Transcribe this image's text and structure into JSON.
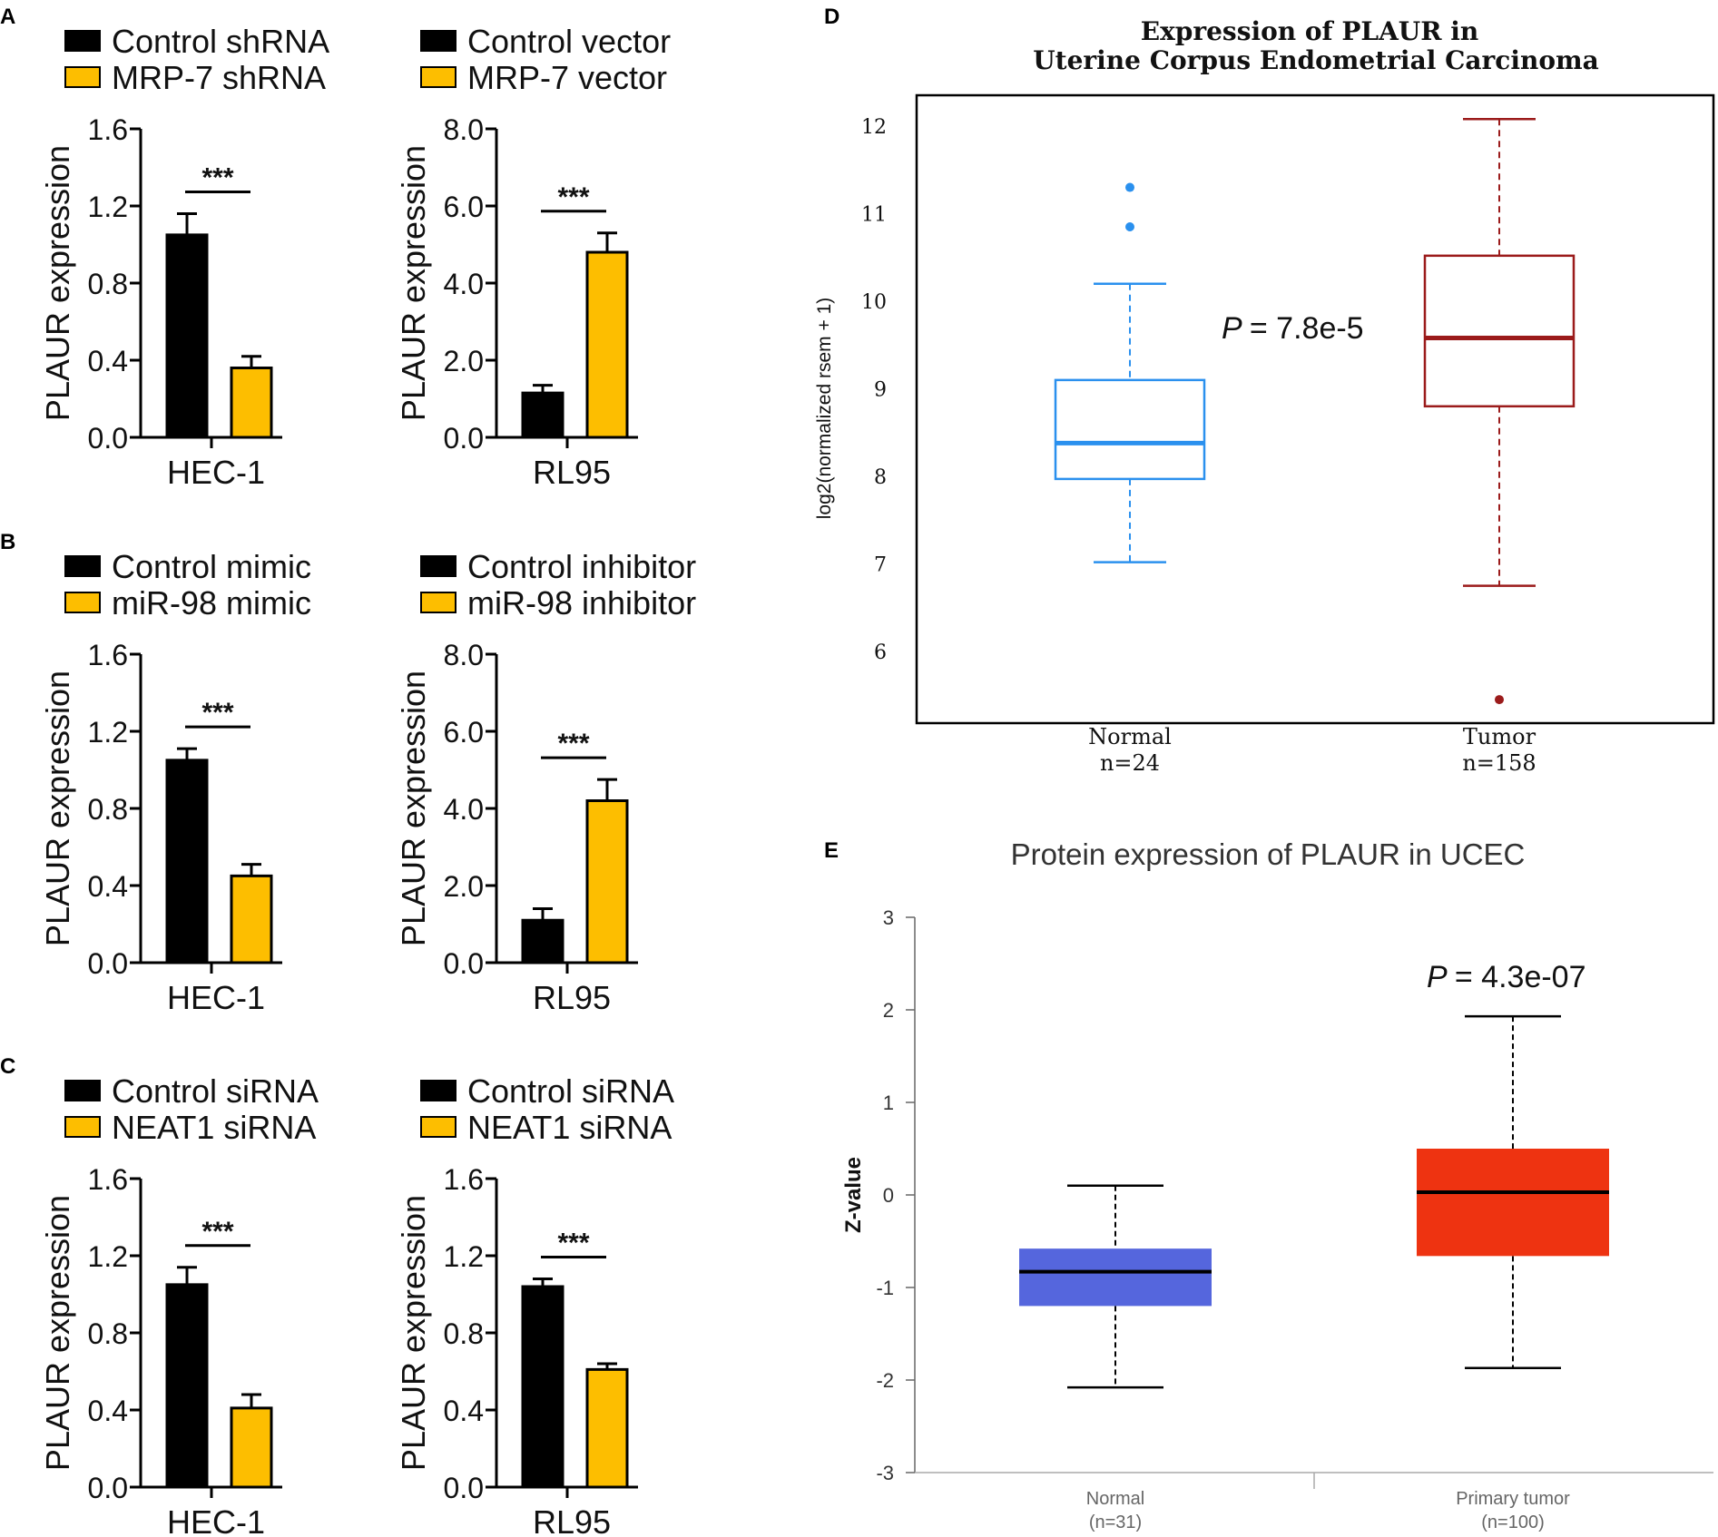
{
  "colors": {
    "control": "#000000",
    "treated": "#fdbe00",
    "d_normal": "#2a90ee",
    "d_tumor": "#9b1b1b",
    "e_normal": "#5566dd",
    "e_tumor": "#ee3311"
  },
  "chart_data": [
    {
      "id": "A1",
      "type": "bar",
      "panel_label": "A",
      "legend": [
        "Control shRNA",
        "MRP-7 shRNA"
      ],
      "ylabel": "PLAUR expression",
      "xlabel": "HEC-1",
      "ylim": [
        0,
        1.6
      ],
      "yticks": [
        "0.0",
        "0.4",
        "0.8",
        "1.2",
        "1.6"
      ],
      "series": [
        {
          "name": "Control shRNA",
          "value": 1.05,
          "err": 0.11
        },
        {
          "name": "MRP-7 shRNA",
          "value": 0.36,
          "err": 0.06
        }
      ],
      "significance": "***"
    },
    {
      "id": "A2",
      "type": "bar",
      "panel_label": "",
      "legend": [
        "Control vector",
        "MRP-7 vector"
      ],
      "ylabel": "PLAUR expression",
      "xlabel": "RL95",
      "ylim": [
        0,
        8.0
      ],
      "yticks": [
        "0.0",
        "2.0",
        "4.0",
        "6.0",
        "8.0"
      ],
      "series": [
        {
          "name": "Control vector",
          "value": 1.15,
          "err": 0.2
        },
        {
          "name": "MRP-7 vector",
          "value": 4.8,
          "err": 0.5
        }
      ],
      "significance": "***"
    },
    {
      "id": "B1",
      "type": "bar",
      "panel_label": "B",
      "legend": [
        "Control mimic",
        "miR-98 mimic"
      ],
      "ylabel": "PLAUR expression",
      "xlabel": "HEC-1",
      "ylim": [
        0,
        1.6
      ],
      "yticks": [
        "0.0",
        "0.4",
        "0.8",
        "1.2",
        "1.6"
      ],
      "series": [
        {
          "name": "Control mimic",
          "value": 1.05,
          "err": 0.06
        },
        {
          "name": "miR-98 mimic",
          "value": 0.45,
          "err": 0.06
        }
      ],
      "significance": "***"
    },
    {
      "id": "B2",
      "type": "bar",
      "panel_label": "",
      "legend": [
        "Control inhibitor",
        "miR-98 inhibitor"
      ],
      "ylabel": "PLAUR expression",
      "xlabel": "RL95",
      "ylim": [
        0,
        8.0
      ],
      "yticks": [
        "0.0",
        "2.0",
        "4.0",
        "6.0",
        "8.0"
      ],
      "series": [
        {
          "name": "Control inhibitor",
          "value": 1.1,
          "err": 0.3
        },
        {
          "name": "miR-98 inhibitor",
          "value": 4.2,
          "err": 0.55
        }
      ],
      "significance": "***"
    },
    {
      "id": "C1",
      "type": "bar",
      "panel_label": "C",
      "legend": [
        "Control siRNA",
        "NEAT1 siRNA"
      ],
      "ylabel": "PLAUR expression",
      "xlabel": "HEC-1",
      "ylim": [
        0,
        1.6
      ],
      "yticks": [
        "0.0",
        "0.4",
        "0.8",
        "1.2",
        "1.6"
      ],
      "series": [
        {
          "name": "Control siRNA",
          "value": 1.05,
          "err": 0.09
        },
        {
          "name": "NEAT1 siRNA",
          "value": 0.41,
          "err": 0.07
        }
      ],
      "significance": "***"
    },
    {
      "id": "C2",
      "type": "bar",
      "panel_label": "",
      "legend": [
        "Control siRNA",
        "NEAT1 siRNA"
      ],
      "ylabel": "PLAUR expression",
      "xlabel": "RL95",
      "ylim": [
        0,
        1.6
      ],
      "yticks": [
        "0.0",
        "0.4",
        "0.8",
        "1.2",
        "1.6"
      ],
      "series": [
        {
          "name": "Control siRNA",
          "value": 1.04,
          "err": 0.04
        },
        {
          "name": "NEAT1 siRNA",
          "value": 0.61,
          "err": 0.03
        }
      ],
      "significance": "***"
    },
    {
      "id": "D",
      "type": "box",
      "panel_label": "D",
      "title": "Expression of PLAUR in",
      "subtitle": "Uterine Corpus Endometrial Carcinoma",
      "ylabel": "log2(normalized rsem + 1)",
      "ylim": [
        5.3,
        12.35
      ],
      "yticks": [
        6,
        7,
        8,
        9,
        10,
        11,
        12
      ],
      "annotation": "= 7.8e-5",
      "groups": [
        {
          "label": "Normal",
          "n": "n=24",
          "min": 7.02,
          "q1": 7.97,
          "median": 8.38,
          "q3": 9.1,
          "max": 10.2,
          "outliers": [
            11.3,
            10.85
          ]
        },
        {
          "label": "Tumor",
          "n": "n=158",
          "min": 6.75,
          "q1": 8.8,
          "median": 9.58,
          "q3": 10.52,
          "max": 12.08,
          "outliers": [
            5.45
          ]
        }
      ]
    },
    {
      "id": "E",
      "type": "box",
      "panel_label": "E",
      "title": "Protein expression of PLAUR in UCEC",
      "ylabel": "Z-value",
      "ylim": [
        -3,
        3
      ],
      "yticks": [
        "-3",
        "-2",
        "-1",
        "0",
        "1",
        "2",
        "3"
      ],
      "annotation": "= 4.3e-07",
      "groups": [
        {
          "label": "Normal",
          "n": "(n=31)",
          "min": -2.08,
          "q1": -1.2,
          "median": -0.83,
          "q3": -0.58,
          "max": 0.1
        },
        {
          "label": "Primary tumor",
          "n": "(n=100)",
          "min": -1.87,
          "q1": -0.66,
          "median": 0.03,
          "q3": 0.5,
          "max": 1.93
        }
      ]
    }
  ]
}
